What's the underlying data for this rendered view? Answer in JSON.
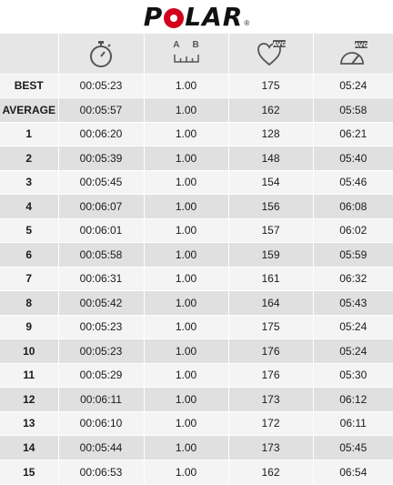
{
  "header": {
    "logo_text": "POLAR",
    "logo_reg": "®",
    "logo_color": "#d3001c"
  },
  "columns": [
    {
      "icon": "stopwatch-icon"
    },
    {
      "icon": "distance-icon",
      "labels": [
        "A",
        "B"
      ]
    },
    {
      "icon": "heart-rate-avg-icon",
      "badge": "AVG"
    },
    {
      "icon": "pace-gauge-avg-icon",
      "badge": "AVG"
    }
  ],
  "rows": [
    {
      "label": "BEST",
      "time": "00:05:23",
      "distance": "1.00",
      "hr": "175",
      "pace": "05:24"
    },
    {
      "label": "AVERAGE",
      "time": "00:05:57",
      "distance": "1.00",
      "hr": "162",
      "pace": "05:58"
    },
    {
      "label": "1",
      "time": "00:06:20",
      "distance": "1.00",
      "hr": "128",
      "pace": "06:21"
    },
    {
      "label": "2",
      "time": "00:05:39",
      "distance": "1.00",
      "hr": "148",
      "pace": "05:40"
    },
    {
      "label": "3",
      "time": "00:05:45",
      "distance": "1.00",
      "hr": "154",
      "pace": "05:46"
    },
    {
      "label": "4",
      "time": "00:06:07",
      "distance": "1.00",
      "hr": "156",
      "pace": "06:08"
    },
    {
      "label": "5",
      "time": "00:06:01",
      "distance": "1.00",
      "hr": "157",
      "pace": "06:02"
    },
    {
      "label": "6",
      "time": "00:05:58",
      "distance": "1.00",
      "hr": "159",
      "pace": "05:59"
    },
    {
      "label": "7",
      "time": "00:06:31",
      "distance": "1.00",
      "hr": "161",
      "pace": "06:32"
    },
    {
      "label": "8",
      "time": "00:05:42",
      "distance": "1.00",
      "hr": "164",
      "pace": "05:43"
    },
    {
      "label": "9",
      "time": "00:05:23",
      "distance": "1.00",
      "hr": "175",
      "pace": "05:24"
    },
    {
      "label": "10",
      "time": "00:05:23",
      "distance": "1.00",
      "hr": "176",
      "pace": "05:24"
    },
    {
      "label": "11",
      "time": "00:05:29",
      "distance": "1.00",
      "hr": "176",
      "pace": "05:30"
    },
    {
      "label": "12",
      "time": "00:06:11",
      "distance": "1.00",
      "hr": "173",
      "pace": "06:12"
    },
    {
      "label": "13",
      "time": "00:06:10",
      "distance": "1.00",
      "hr": "172",
      "pace": "06:11"
    },
    {
      "label": "14",
      "time": "00:05:44",
      "distance": "1.00",
      "hr": "173",
      "pace": "05:45"
    },
    {
      "label": "15",
      "time": "00:06:53",
      "distance": "1.00",
      "hr": "162",
      "pace": "06:54"
    }
  ]
}
